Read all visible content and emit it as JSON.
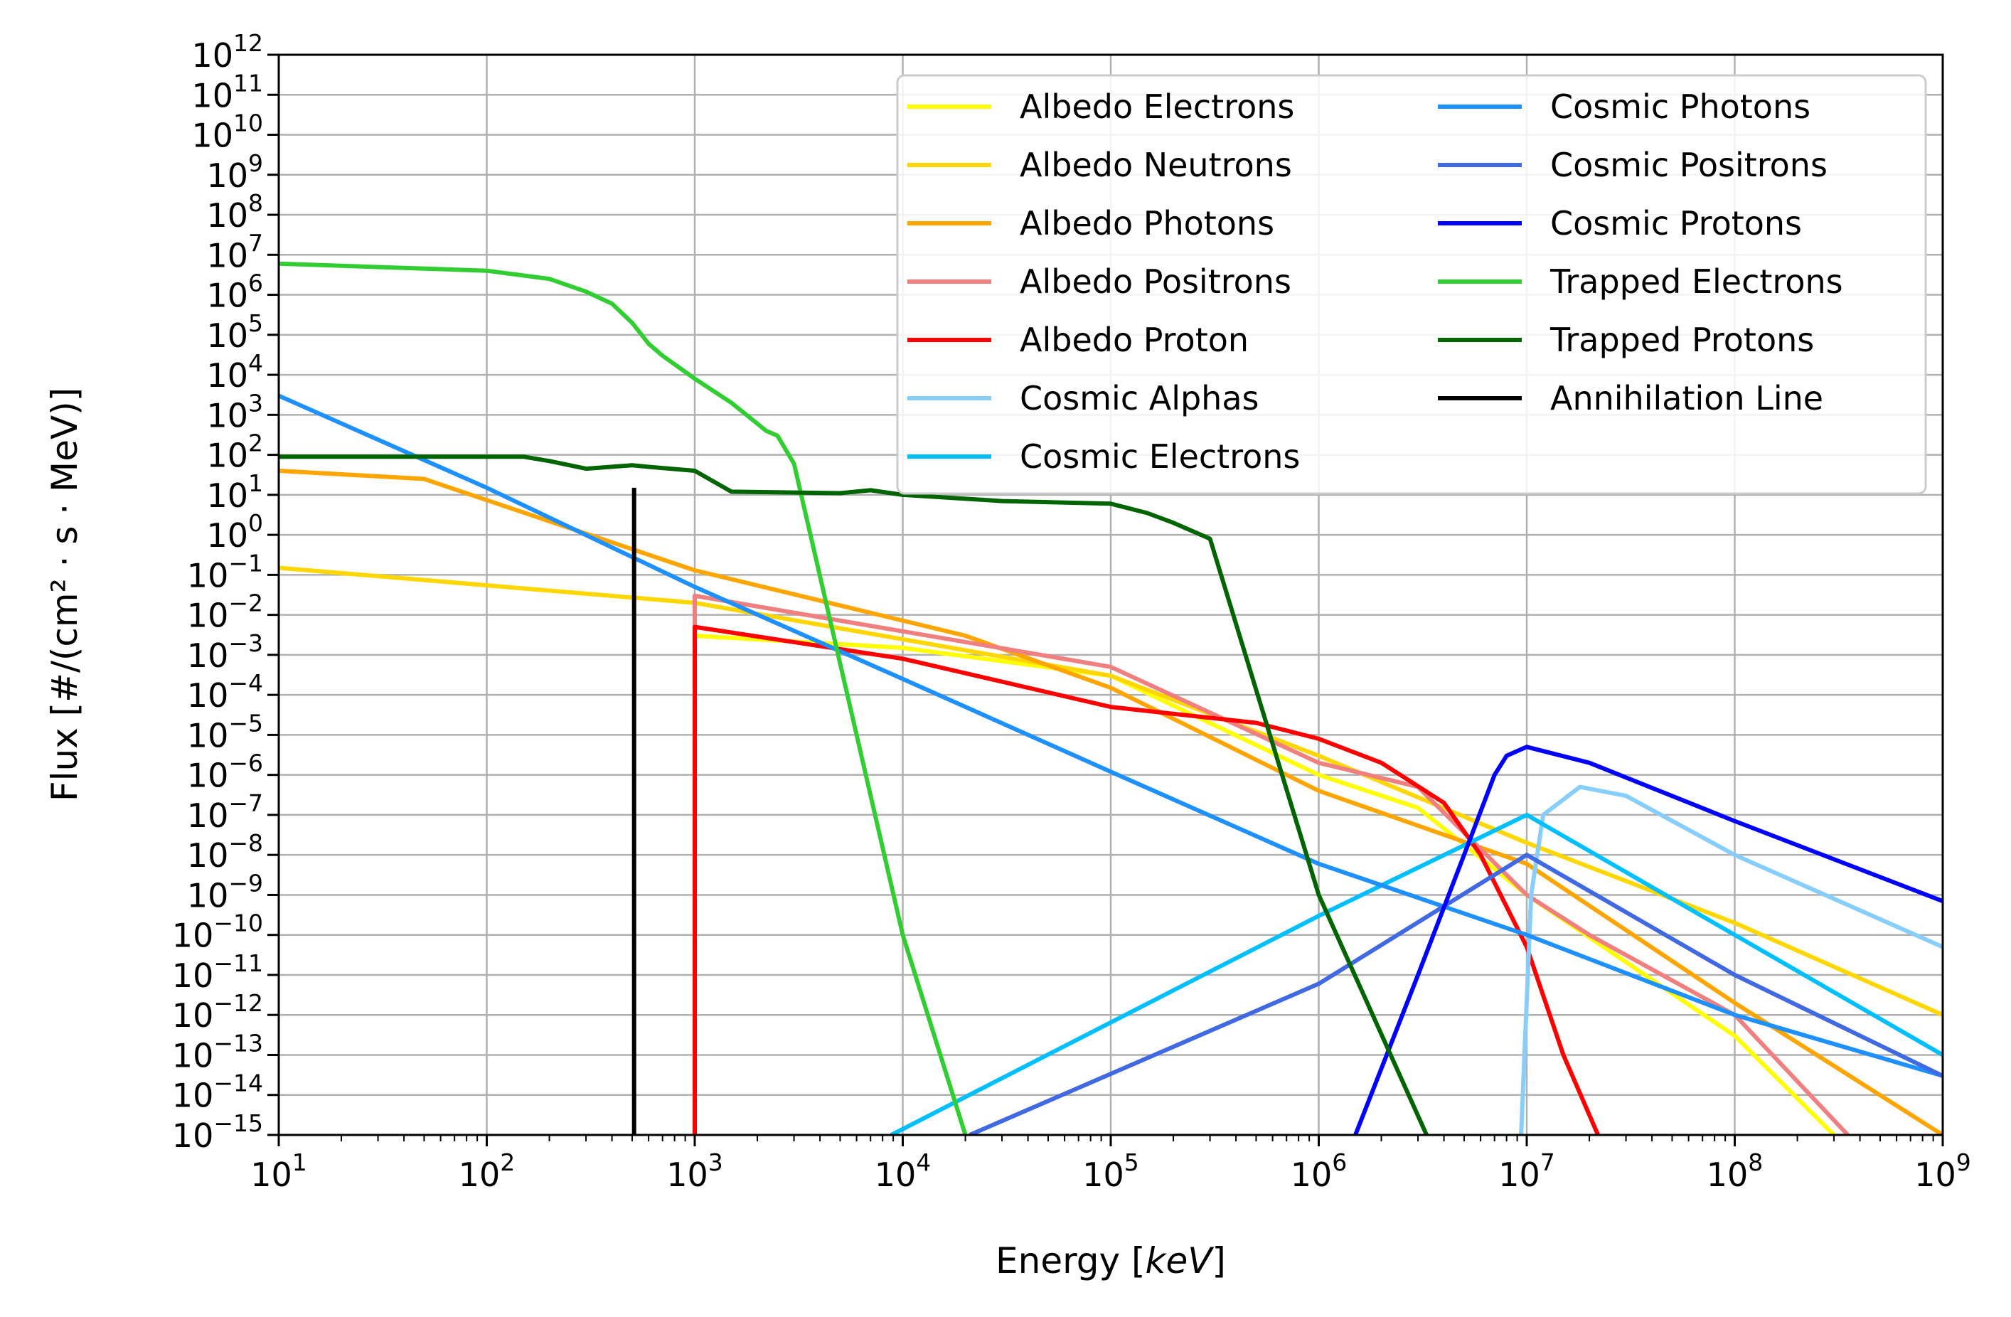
{
  "chart_data": {
    "type": "line",
    "x_scale": "log",
    "y_scale": "log",
    "xlim": [
      10,
      1000000000
    ],
    "ylim": [
      1e-15,
      1000000000000.0
    ],
    "grid": true,
    "legend_position": "top-right",
    "legend_columns": 2,
    "xlabel": {
      "prefix": "Energy [",
      "math": "keV",
      "suffix": "]"
    },
    "ylabel": {
      "text": "Flux [#/(cm² · s · MeV)]"
    },
    "x_ticks": [
      {
        "base": "10",
        "exp": "1",
        "value": 10
      },
      {
        "base": "10",
        "exp": "2",
        "value": 100
      },
      {
        "base": "10",
        "exp": "3",
        "value": 1000
      },
      {
        "base": "10",
        "exp": "4",
        "value": 10000
      },
      {
        "base": "10",
        "exp": "5",
        "value": 100000
      },
      {
        "base": "10",
        "exp": "6",
        "value": 1000000
      },
      {
        "base": "10",
        "exp": "7",
        "value": 10000000
      },
      {
        "base": "10",
        "exp": "8",
        "value": 100000000
      },
      {
        "base": "10",
        "exp": "9",
        "value": 1000000000
      }
    ],
    "y_ticks": [
      {
        "base": "10",
        "exp": "−15",
        "value": -15
      },
      {
        "base": "10",
        "exp": "−14",
        "value": -14
      },
      {
        "base": "10",
        "exp": "−13",
        "value": -13
      },
      {
        "base": "10",
        "exp": "−12",
        "value": -12
      },
      {
        "base": "10",
        "exp": "−11",
        "value": -11
      },
      {
        "base": "10",
        "exp": "−10",
        "value": -10
      },
      {
        "base": "10",
        "exp": "−9",
        "value": -9
      },
      {
        "base": "10",
        "exp": "−8",
        "value": -8
      },
      {
        "base": "10",
        "exp": "−7",
        "value": -7
      },
      {
        "base": "10",
        "exp": "−6",
        "value": -6
      },
      {
        "base": "10",
        "exp": "−5",
        "value": -5
      },
      {
        "base": "10",
        "exp": "−4",
        "value": -4
      },
      {
        "base": "10",
        "exp": "−3",
        "value": -3
      },
      {
        "base": "10",
        "exp": "−2",
        "value": -2
      },
      {
        "base": "10",
        "exp": "−1",
        "value": -1
      },
      {
        "base": "10",
        "exp": "0",
        "value": 0
      },
      {
        "base": "10",
        "exp": "1",
        "value": 1
      },
      {
        "base": "10",
        "exp": "2",
        "value": 2
      },
      {
        "base": "10",
        "exp": "3",
        "value": 3
      },
      {
        "base": "10",
        "exp": "4",
        "value": 4
      },
      {
        "base": "10",
        "exp": "5",
        "value": 5
      },
      {
        "base": "10",
        "exp": "6",
        "value": 6
      },
      {
        "base": "10",
        "exp": "7",
        "value": 7
      },
      {
        "base": "10",
        "exp": "8",
        "value": 8
      },
      {
        "base": "10",
        "exp": "9",
        "value": 9
      },
      {
        "base": "10",
        "exp": "10",
        "value": 10
      },
      {
        "base": "10",
        "exp": "11",
        "value": 11
      },
      {
        "base": "10",
        "exp": "12",
        "value": 12
      }
    ],
    "series": [
      {
        "name": "Albedo Electrons",
        "color": "#ffff00",
        "x": [
          1000,
          10000,
          100000,
          1000000,
          3000000,
          10000000,
          100000000,
          300000000
        ],
        "y": [
          0.003,
          0.0015,
          0.0003,
          1e-06,
          1.5e-07,
          1e-09,
          3e-13,
          1e-15
        ]
      },
      {
        "name": "Albedo Neutrons",
        "color": "#ffd700",
        "x": [
          10,
          1000,
          100000,
          1000000,
          10000000,
          100000000,
          1000000000
        ],
        "y": [
          0.15,
          0.02,
          0.0003,
          3e-06,
          2e-08,
          2e-10,
          1e-12
        ]
      },
      {
        "name": "Albedo Photons",
        "color": "#ffa500",
        "x": [
          10,
          50,
          1000,
          20000,
          100000,
          1000000,
          10000000,
          100000000,
          1000000000
        ],
        "y": [
          40,
          25,
          0.13,
          0.003,
          0.00015,
          4e-07,
          6e-09,
          2e-12,
          1e-15
        ]
      },
      {
        "name": "Albedo Positrons",
        "color": "#f08080",
        "x": [
          1000,
          1000,
          100000,
          1000000,
          3000000,
          10000000,
          20000000,
          100000000,
          350000000
        ],
        "y": [
          1e-15,
          0.03,
          0.0005,
          2e-06,
          5e-07,
          1e-09,
          1e-10,
          1e-12,
          1e-15
        ]
      },
      {
        "name": "Albedo Proton",
        "color": "#ff0000",
        "x": [
          1000,
          1000,
          10000,
          100000,
          500000,
          1000000,
          2000000,
          4000000,
          6000000,
          10000000,
          15000000,
          22000000
        ],
        "y": [
          1e-15,
          0.005,
          0.0008,
          5e-05,
          2e-05,
          8e-06,
          2e-06,
          2e-07,
          1e-08,
          5e-11,
          1e-13,
          1e-15
        ]
      },
      {
        "name": "Cosmic Alphas",
        "color": "#87cefa",
        "x": [
          9400000,
          10500000,
          12000000,
          18000000,
          30000000,
          100000000,
          1000000000
        ],
        "y": [
          1e-15,
          1e-09,
          1e-07,
          5e-07,
          3e-07,
          1e-08,
          5e-11
        ]
      },
      {
        "name": "Cosmic Electrons",
        "color": "#00bfff",
        "x": [
          8800,
          1000000,
          10000000,
          100000000,
          1000000000
        ],
        "y": [
          1e-15,
          3e-10,
          1e-07,
          1e-10,
          1e-13
        ]
      },
      {
        "name": "Cosmic Photons",
        "color": "#1e90ff",
        "x": [
          10,
          100,
          1000,
          10000,
          100000,
          1000000,
          10000000,
          100000000,
          1000000000
        ],
        "y": [
          3000,
          15,
          0.05,
          0.00025,
          1.2e-06,
          6e-09,
          1e-10,
          1e-12,
          3e-14
        ]
      },
      {
        "name": "Cosmic Positrons",
        "color": "#4169e1",
        "x": [
          21000,
          1000000,
          10000000,
          100000000,
          1000000000
        ],
        "y": [
          1e-15,
          6e-12,
          1e-08,
          1e-11,
          3e-14
        ]
      },
      {
        "name": "Cosmic Protons",
        "color": "#0000ff",
        "x": [
          1500000,
          3000000,
          5000000,
          7000000,
          8000000,
          10000000,
          20000000,
          100000000,
          1000000000
        ],
        "y": [
          1e-15,
          1e-11,
          1e-08,
          1e-06,
          3e-06,
          5e-06,
          2e-06,
          7e-08,
          7e-10
        ]
      },
      {
        "name": "Trapped Electrons",
        "color": "#32cd32",
        "x": [
          10,
          100,
          200,
          300,
          400,
          500,
          600,
          700,
          1000,
          1500,
          2000,
          2200,
          2500,
          3000,
          10000,
          20000
        ],
        "y": [
          6000000,
          4000000,
          2500000,
          1200000,
          600000,
          200000,
          60000,
          30000,
          8000,
          2000,
          600,
          400,
          300,
          60,
          1e-10,
          1e-15
        ]
      },
      {
        "name": "Trapped Protons",
        "color": "#006400",
        "x": [
          10,
          150,
          200,
          300,
          500,
          600,
          1000,
          1500,
          5000,
          7000,
          10000,
          30000,
          100000,
          150000,
          200000,
          300000,
          1000000,
          3300000
        ],
        "y": [
          90,
          90,
          70,
          45,
          55,
          50,
          40,
          12,
          11,
          13,
          10,
          7,
          6,
          3.5,
          2,
          0.8,
          1e-09,
          1e-15
        ]
      },
      {
        "name": "Annihilation Line",
        "color": "#000000",
        "x": [
          511,
          511
        ],
        "y": [
          1e-15,
          15
        ]
      }
    ]
  }
}
